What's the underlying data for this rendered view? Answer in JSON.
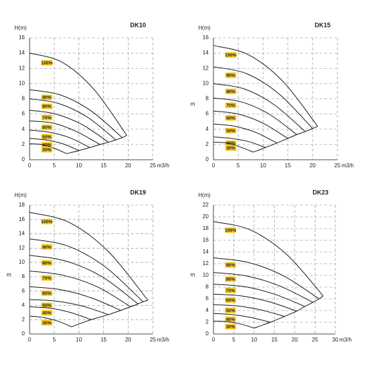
{
  "chart_data": [
    {
      "type": "line",
      "title": "DK10",
      "y_label": "H(m)",
      "x_label": "m3/h",
      "xlim": [
        0,
        25
      ],
      "ylim": [
        0,
        16
      ],
      "xticks": [
        0,
        5,
        10,
        15,
        20,
        25
      ],
      "yticks": [
        0,
        2,
        4,
        6,
        8,
        10,
        12,
        14,
        16
      ],
      "grid": true,
      "tag_color": "#f7c81e",
      "series": [
        {
          "name": "100%",
          "color": "#1a1a1a",
          "x": [
            0,
            6.6,
            13.1,
            19.7
          ],
          "values": [
            14,
            12.8,
            9.2,
            3.2
          ]
        },
        {
          "name": "90%",
          "color": "#1a1a1a",
          "x": [
            0,
            6.3,
            12.5,
            18.8
          ],
          "values": [
            9.2,
            8.5,
            6.4,
            2.9
          ]
        },
        {
          "name": "80%",
          "color": "#1a1a1a",
          "x": [
            0,
            5.8,
            11.7,
            17.5
          ],
          "values": [
            8,
            7.4,
            5.6,
            2.6
          ]
        },
        {
          "name": "70%",
          "color": "#1a1a1a",
          "x": [
            0,
            5.3,
            10.7,
            16
          ],
          "values": [
            6.5,
            6.0,
            4.6,
            2.3
          ]
        },
        {
          "name": "60%",
          "color": "#1a1a1a",
          "x": [
            0,
            4.8,
            9.5,
            14.3
          ],
          "values": [
            5.1,
            4.8,
            3.7,
            2.0
          ]
        },
        {
          "name": "50%",
          "color": "#1a1a1a",
          "x": [
            0,
            4.1,
            8.1,
            12.2
          ],
          "values": [
            3.9,
            3.6,
            2.9,
            1.6
          ]
        },
        {
          "name": "40%",
          "color": "#1a1a1a",
          "x": [
            0,
            3.3,
            6.7,
            10
          ],
          "values": [
            2.8,
            2.6,
            2.1,
            1.2
          ]
        },
        {
          "name": "30%",
          "color": "#1a1a1a",
          "x": [
            0,
            2.5,
            5,
            7.5
          ],
          "values": [
            2.1,
            2.0,
            1.5,
            0.8
          ]
        }
      ],
      "envelope": {
        "color": "#1a1a1a",
        "x": [
          7.5,
          10,
          12.2,
          14.3,
          16,
          17.5,
          18.8,
          19.7
        ],
        "values": [
          0.8,
          1.2,
          1.6,
          2.0,
          2.3,
          2.6,
          2.9,
          3.2
        ]
      }
    },
    {
      "type": "line",
      "title": "DK15",
      "y_label": "H(m)",
      "y_side_label": "m",
      "x_label": "m3/h",
      "xlim": [
        0,
        25
      ],
      "ylim": [
        0,
        16
      ],
      "xticks": [
        0,
        5,
        10,
        15,
        20,
        25
      ],
      "yticks": [
        0,
        2,
        4,
        6,
        8,
        10,
        12,
        14,
        16
      ],
      "grid": true,
      "tag_color": "#f7c81e",
      "series": [
        {
          "name": "100%",
          "color": "#1a1a1a",
          "x": [
            0,
            7,
            14,
            21
          ],
          "values": [
            15,
            13.8,
            10.3,
            4.4
          ]
        },
        {
          "name": "90%",
          "color": "#1a1a1a",
          "x": [
            0,
            6.7,
            13.3,
            20
          ],
          "values": [
            12.2,
            11.3,
            8.6,
            4.1
          ]
        },
        {
          "name": "80%",
          "color": "#1a1a1a",
          "x": [
            0,
            6.2,
            12.3,
            18.5
          ],
          "values": [
            10,
            9.3,
            7.2,
            3.7
          ]
        },
        {
          "name": "70%",
          "color": "#1a1a1a",
          "x": [
            0,
            5.6,
            11.2,
            16.8
          ],
          "values": [
            8.1,
            7.6,
            6.0,
            3.3
          ]
        },
        {
          "name": "60%",
          "color": "#1a1a1a",
          "x": [
            0,
            5,
            10,
            15
          ],
          "values": [
            6.4,
            6.0,
            4.8,
            2.8
          ]
        },
        {
          "name": "50%",
          "color": "#1a1a1a",
          "x": [
            0,
            4.3,
            8.5,
            12.8
          ],
          "values": [
            4.7,
            4.4,
            3.6,
            2.2
          ]
        },
        {
          "name": "40%",
          "color": "#1a1a1a",
          "x": [
            0,
            3.5,
            7,
            10.5
          ],
          "values": [
            3,
            2.8,
            2.4,
            1.6
          ]
        },
        {
          "name": "30%",
          "color": "#1a1a1a",
          "x": [
            0,
            2.7,
            5.3,
            8
          ],
          "values": [
            2.3,
            2.2,
            1.7,
            1.0
          ]
        }
      ],
      "envelope": {
        "color": "#1a1a1a",
        "x": [
          8,
          10.5,
          12.8,
          15,
          16.8,
          18.5,
          20,
          21
        ],
        "values": [
          1.0,
          1.6,
          2.2,
          2.8,
          3.3,
          3.7,
          4.1,
          4.4
        ]
      }
    },
    {
      "type": "line",
      "title": "DK19",
      "y_label": "H(m)",
      "y_side_label": "m",
      "x_label": "m3/h",
      "xlim": [
        0,
        25
      ],
      "ylim": [
        0,
        18
      ],
      "xticks": [
        0,
        5,
        10,
        15,
        20,
        25
      ],
      "yticks": [
        0,
        2,
        4,
        6,
        8,
        10,
        12,
        14,
        16,
        18
      ],
      "grid": true,
      "tag_color": "#f7c81e",
      "series": [
        {
          "name": "100%",
          "color": "#1a1a1a",
          "x": [
            0,
            8,
            16,
            24
          ],
          "values": [
            17,
            15.6,
            11.5,
            4.7
          ]
        },
        {
          "name": "90%",
          "color": "#1a1a1a",
          "x": [
            0,
            7.7,
            15.3,
            23
          ],
          "values": [
            13.3,
            12.3,
            9.4,
            4.5
          ]
        },
        {
          "name": "80%",
          "color": "#1a1a1a",
          "x": [
            0,
            7.3,
            14.7,
            22
          ],
          "values": [
            11,
            10.2,
            8.0,
            4.2
          ]
        },
        {
          "name": "70%",
          "color": "#1a1a1a",
          "x": [
            0,
            6.8,
            13.7,
            20.5
          ],
          "values": [
            8.8,
            8.2,
            6.6,
            3.8
          ]
        },
        {
          "name": "60%",
          "color": "#1a1a1a",
          "x": [
            0,
            6.2,
            12.3,
            18.5
          ],
          "values": [
            6.6,
            6.2,
            5.1,
            3.3
          ]
        },
        {
          "name": "50%",
          "color": "#1a1a1a",
          "x": [
            0,
            5.3,
            10.7,
            16
          ],
          "values": [
            4.8,
            4.6,
            3.9,
            2.7
          ]
        },
        {
          "name": "40%",
          "color": "#1a1a1a",
          "x": [
            0,
            4.2,
            8.3,
            12.5
          ],
          "values": [
            3.8,
            3.6,
            3.0,
            2.0
          ]
        },
        {
          "name": "30%",
          "color": "#1a1a1a",
          "x": [
            0,
            2.8,
            5.7,
            8.5
          ],
          "values": [
            2.5,
            2.3,
            1.8,
            1.0
          ]
        }
      ],
      "envelope": {
        "color": "#1a1a1a",
        "x": [
          8.5,
          12.5,
          16,
          18.5,
          20.5,
          22,
          23,
          24
        ],
        "values": [
          1.0,
          2.0,
          2.7,
          3.3,
          3.8,
          4.2,
          4.5,
          4.7
        ]
      }
    },
    {
      "type": "line",
      "title": "DK23",
      "y_label": "H(m)",
      "y_side_label": "m",
      "x_label": "m3/h",
      "xlim": [
        0,
        30
      ],
      "ylim": [
        0,
        22
      ],
      "xticks": [
        0,
        5,
        10,
        15,
        20,
        25,
        30
      ],
      "yticks": [
        0,
        2,
        4,
        6,
        8,
        10,
        12,
        14,
        16,
        18,
        20,
        22
      ],
      "grid": true,
      "tag_color": "#f7c81e",
      "series": [
        {
          "name": "100%",
          "color": "#1a1a1a",
          "x": [
            0,
            9,
            18,
            27
          ],
          "values": [
            19.2,
            17.8,
            13.6,
            6.5
          ]
        },
        {
          "name": "90%",
          "color": "#1a1a1a",
          "x": [
            0,
            8.7,
            17.3,
            26
          ],
          "values": [
            13,
            12.2,
            9.9,
            6
          ]
        },
        {
          "name": "80%",
          "color": "#1a1a1a",
          "x": [
            0,
            8.2,
            16.3,
            24.5
          ],
          "values": [
            10.5,
            9.9,
            8.2,
            5.4
          ]
        },
        {
          "name": "70%",
          "color": "#1a1a1a",
          "x": [
            0,
            7.5,
            15,
            22.5
          ],
          "values": [
            8.5,
            8.1,
            6.8,
            4.7
          ]
        },
        {
          "name": "60%",
          "color": "#1a1a1a",
          "x": [
            0,
            6.8,
            13.7,
            20.5
          ],
          "values": [
            6.8,
            6.5,
            5.5,
            3.9
          ]
        },
        {
          "name": "50%",
          "color": "#1a1a1a",
          "x": [
            0,
            5.8,
            11.7,
            17.5
          ],
          "values": [
            5,
            4.8,
            4.1,
            3
          ]
        },
        {
          "name": "40%",
          "color": "#1a1a1a",
          "x": [
            0,
            4.7,
            9.3,
            14
          ],
          "values": [
            3.5,
            3.3,
            2.8,
            2
          ]
        },
        {
          "name": "30%",
          "color": "#1a1a1a",
          "x": [
            0,
            3.3,
            6.7,
            10
          ],
          "values": [
            2.2,
            2.1,
            1.7,
            1
          ]
        }
      ],
      "envelope": {
        "color": "#1a1a1a",
        "x": [
          10,
          14,
          17.5,
          20.5,
          22.5,
          24.5,
          26,
          27
        ],
        "values": [
          1,
          2,
          3,
          3.9,
          4.7,
          5.4,
          6.0,
          6.5
        ]
      }
    }
  ]
}
